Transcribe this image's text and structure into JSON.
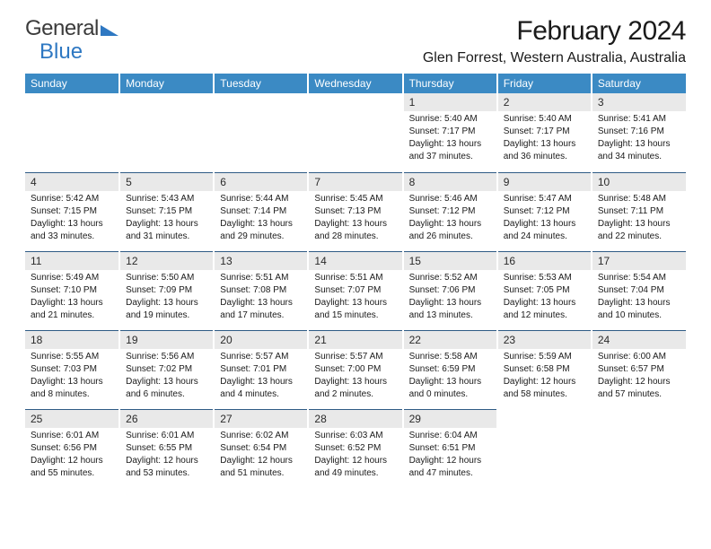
{
  "brand": {
    "part1": "General",
    "part2": "Blue",
    "logo_color": "#2e78c2"
  },
  "title": "February 2024",
  "location": "Glen Forrest, Western Australia, Australia",
  "colors": {
    "header_bg": "#3b8ac4",
    "header_text": "#ffffff",
    "daynum_bg": "#e9e9e9",
    "divider": "#2f5b85",
    "text": "#1a1a1a"
  },
  "typography": {
    "title_fontsize": 30,
    "location_fontsize": 16,
    "header_fontsize": 12,
    "body_fontsize": 10
  },
  "day_headers": [
    "Sunday",
    "Monday",
    "Tuesday",
    "Wednesday",
    "Thursday",
    "Friday",
    "Saturday"
  ],
  "weeks": [
    [
      {
        "num": "",
        "lines": []
      },
      {
        "num": "",
        "lines": []
      },
      {
        "num": "",
        "lines": []
      },
      {
        "num": "",
        "lines": []
      },
      {
        "num": "1",
        "lines": [
          "Sunrise: 5:40 AM",
          "Sunset: 7:17 PM",
          "Daylight: 13 hours and 37 minutes."
        ]
      },
      {
        "num": "2",
        "lines": [
          "Sunrise: 5:40 AM",
          "Sunset: 7:17 PM",
          "Daylight: 13 hours and 36 minutes."
        ]
      },
      {
        "num": "3",
        "lines": [
          "Sunrise: 5:41 AM",
          "Sunset: 7:16 PM",
          "Daylight: 13 hours and 34 minutes."
        ]
      }
    ],
    [
      {
        "num": "4",
        "lines": [
          "Sunrise: 5:42 AM",
          "Sunset: 7:15 PM",
          "Daylight: 13 hours and 33 minutes."
        ]
      },
      {
        "num": "5",
        "lines": [
          "Sunrise: 5:43 AM",
          "Sunset: 7:15 PM",
          "Daylight: 13 hours and 31 minutes."
        ]
      },
      {
        "num": "6",
        "lines": [
          "Sunrise: 5:44 AM",
          "Sunset: 7:14 PM",
          "Daylight: 13 hours and 29 minutes."
        ]
      },
      {
        "num": "7",
        "lines": [
          "Sunrise: 5:45 AM",
          "Sunset: 7:13 PM",
          "Daylight: 13 hours and 28 minutes."
        ]
      },
      {
        "num": "8",
        "lines": [
          "Sunrise: 5:46 AM",
          "Sunset: 7:12 PM",
          "Daylight: 13 hours and 26 minutes."
        ]
      },
      {
        "num": "9",
        "lines": [
          "Sunrise: 5:47 AM",
          "Sunset: 7:12 PM",
          "Daylight: 13 hours and 24 minutes."
        ]
      },
      {
        "num": "10",
        "lines": [
          "Sunrise: 5:48 AM",
          "Sunset: 7:11 PM",
          "Daylight: 13 hours and 22 minutes."
        ]
      }
    ],
    [
      {
        "num": "11",
        "lines": [
          "Sunrise: 5:49 AM",
          "Sunset: 7:10 PM",
          "Daylight: 13 hours and 21 minutes."
        ]
      },
      {
        "num": "12",
        "lines": [
          "Sunrise: 5:50 AM",
          "Sunset: 7:09 PM",
          "Daylight: 13 hours and 19 minutes."
        ]
      },
      {
        "num": "13",
        "lines": [
          "Sunrise: 5:51 AM",
          "Sunset: 7:08 PM",
          "Daylight: 13 hours and 17 minutes."
        ]
      },
      {
        "num": "14",
        "lines": [
          "Sunrise: 5:51 AM",
          "Sunset: 7:07 PM",
          "Daylight: 13 hours and 15 minutes."
        ]
      },
      {
        "num": "15",
        "lines": [
          "Sunrise: 5:52 AM",
          "Sunset: 7:06 PM",
          "Daylight: 13 hours and 13 minutes."
        ]
      },
      {
        "num": "16",
        "lines": [
          "Sunrise: 5:53 AM",
          "Sunset: 7:05 PM",
          "Daylight: 13 hours and 12 minutes."
        ]
      },
      {
        "num": "17",
        "lines": [
          "Sunrise: 5:54 AM",
          "Sunset: 7:04 PM",
          "Daylight: 13 hours and 10 minutes."
        ]
      }
    ],
    [
      {
        "num": "18",
        "lines": [
          "Sunrise: 5:55 AM",
          "Sunset: 7:03 PM",
          "Daylight: 13 hours and 8 minutes."
        ]
      },
      {
        "num": "19",
        "lines": [
          "Sunrise: 5:56 AM",
          "Sunset: 7:02 PM",
          "Daylight: 13 hours and 6 minutes."
        ]
      },
      {
        "num": "20",
        "lines": [
          "Sunrise: 5:57 AM",
          "Sunset: 7:01 PM",
          "Daylight: 13 hours and 4 minutes."
        ]
      },
      {
        "num": "21",
        "lines": [
          "Sunrise: 5:57 AM",
          "Sunset: 7:00 PM",
          "Daylight: 13 hours and 2 minutes."
        ]
      },
      {
        "num": "22",
        "lines": [
          "Sunrise: 5:58 AM",
          "Sunset: 6:59 PM",
          "Daylight: 13 hours and 0 minutes."
        ]
      },
      {
        "num": "23",
        "lines": [
          "Sunrise: 5:59 AM",
          "Sunset: 6:58 PM",
          "Daylight: 12 hours and 58 minutes."
        ]
      },
      {
        "num": "24",
        "lines": [
          "Sunrise: 6:00 AM",
          "Sunset: 6:57 PM",
          "Daylight: 12 hours and 57 minutes."
        ]
      }
    ],
    [
      {
        "num": "25",
        "lines": [
          "Sunrise: 6:01 AM",
          "Sunset: 6:56 PM",
          "Daylight: 12 hours and 55 minutes."
        ]
      },
      {
        "num": "26",
        "lines": [
          "Sunrise: 6:01 AM",
          "Sunset: 6:55 PM",
          "Daylight: 12 hours and 53 minutes."
        ]
      },
      {
        "num": "27",
        "lines": [
          "Sunrise: 6:02 AM",
          "Sunset: 6:54 PM",
          "Daylight: 12 hours and 51 minutes."
        ]
      },
      {
        "num": "28",
        "lines": [
          "Sunrise: 6:03 AM",
          "Sunset: 6:52 PM",
          "Daylight: 12 hours and 49 minutes."
        ]
      },
      {
        "num": "29",
        "lines": [
          "Sunrise: 6:04 AM",
          "Sunset: 6:51 PM",
          "Daylight: 12 hours and 47 minutes."
        ]
      },
      {
        "num": "",
        "lines": []
      },
      {
        "num": "",
        "lines": []
      }
    ]
  ]
}
